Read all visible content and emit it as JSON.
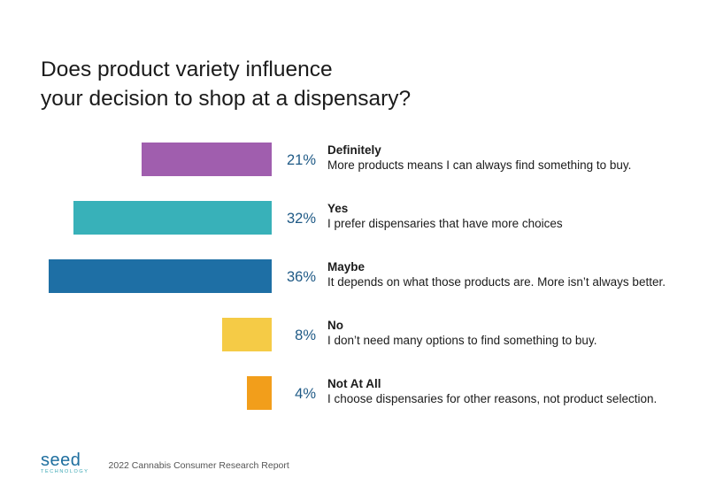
{
  "title_lines": [
    "Does product variety influence",
    "your decision to shop at a dispensary?"
  ],
  "chart_data": {
    "type": "bar",
    "orientation": "horizontal",
    "categories": [
      "Definitely",
      "Yes",
      "Maybe",
      "No",
      "Not At All"
    ],
    "values": [
      21,
      32,
      36,
      8,
      4
    ],
    "value_labels": [
      "21%",
      "32%",
      "36%",
      "8%",
      "4%"
    ],
    "descriptions": [
      "More products means I can always find something to buy.",
      "I prefer dispensaries that have more choices",
      "It depends on what those products are. More isn’t always better.",
      "I don’t need many options to find something to buy.",
      "I choose dispensaries for other reasons, not product selection."
    ],
    "colors": [
      "#a05eae",
      "#38b1b9",
      "#1e6fa5",
      "#f5cb46",
      "#f29e1b"
    ],
    "unit": "%",
    "title": "Does product variety influence your decision to shop at a dispensary?",
    "xlim": [
      0,
      36
    ],
    "grid": false,
    "legend": "none"
  },
  "footer": {
    "logo_word": "seed",
    "logo_sub": "TECHNOLOGY",
    "report": "2022 Cannabis Consumer Research Report"
  }
}
